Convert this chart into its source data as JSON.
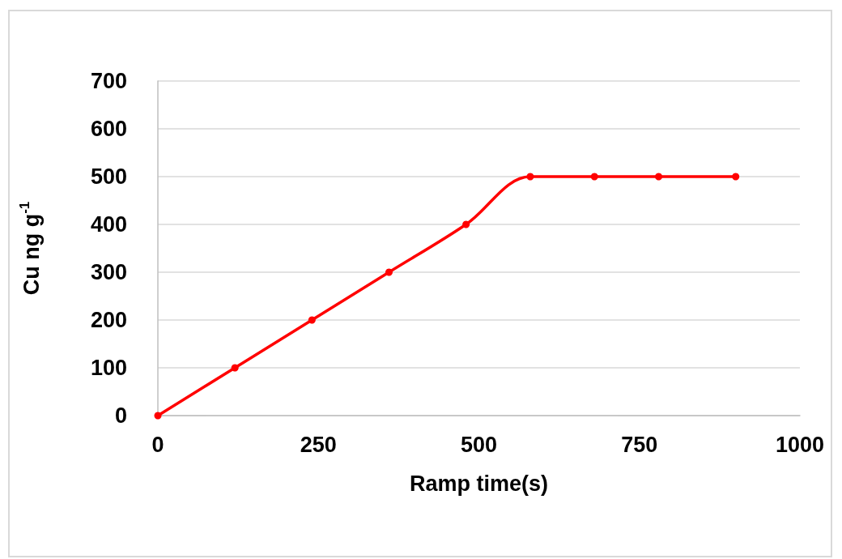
{
  "chart_data": {
    "type": "line",
    "xlabel": "Ramp time(s)",
    "ylabel": "Cu ng g$^{-1}$",
    "x": [
      0,
      120,
      240,
      360,
      480,
      580,
      680,
      780,
      900
    ],
    "series": [
      {
        "color": "#ff0000",
        "values": [
          0,
          100,
          200,
          300,
          400,
          500,
          500,
          500,
          500
        ]
      }
    ],
    "xlim": [
      0,
      1000
    ],
    "xticks": [
      0,
      250,
      500,
      750,
      1000
    ],
    "ylim": [
      0,
      700
    ],
    "yticks": [
      0,
      100,
      200,
      300,
      400,
      500,
      600,
      700
    ],
    "grid": "y",
    "marker": "circle",
    "line_style": "solid"
  }
}
